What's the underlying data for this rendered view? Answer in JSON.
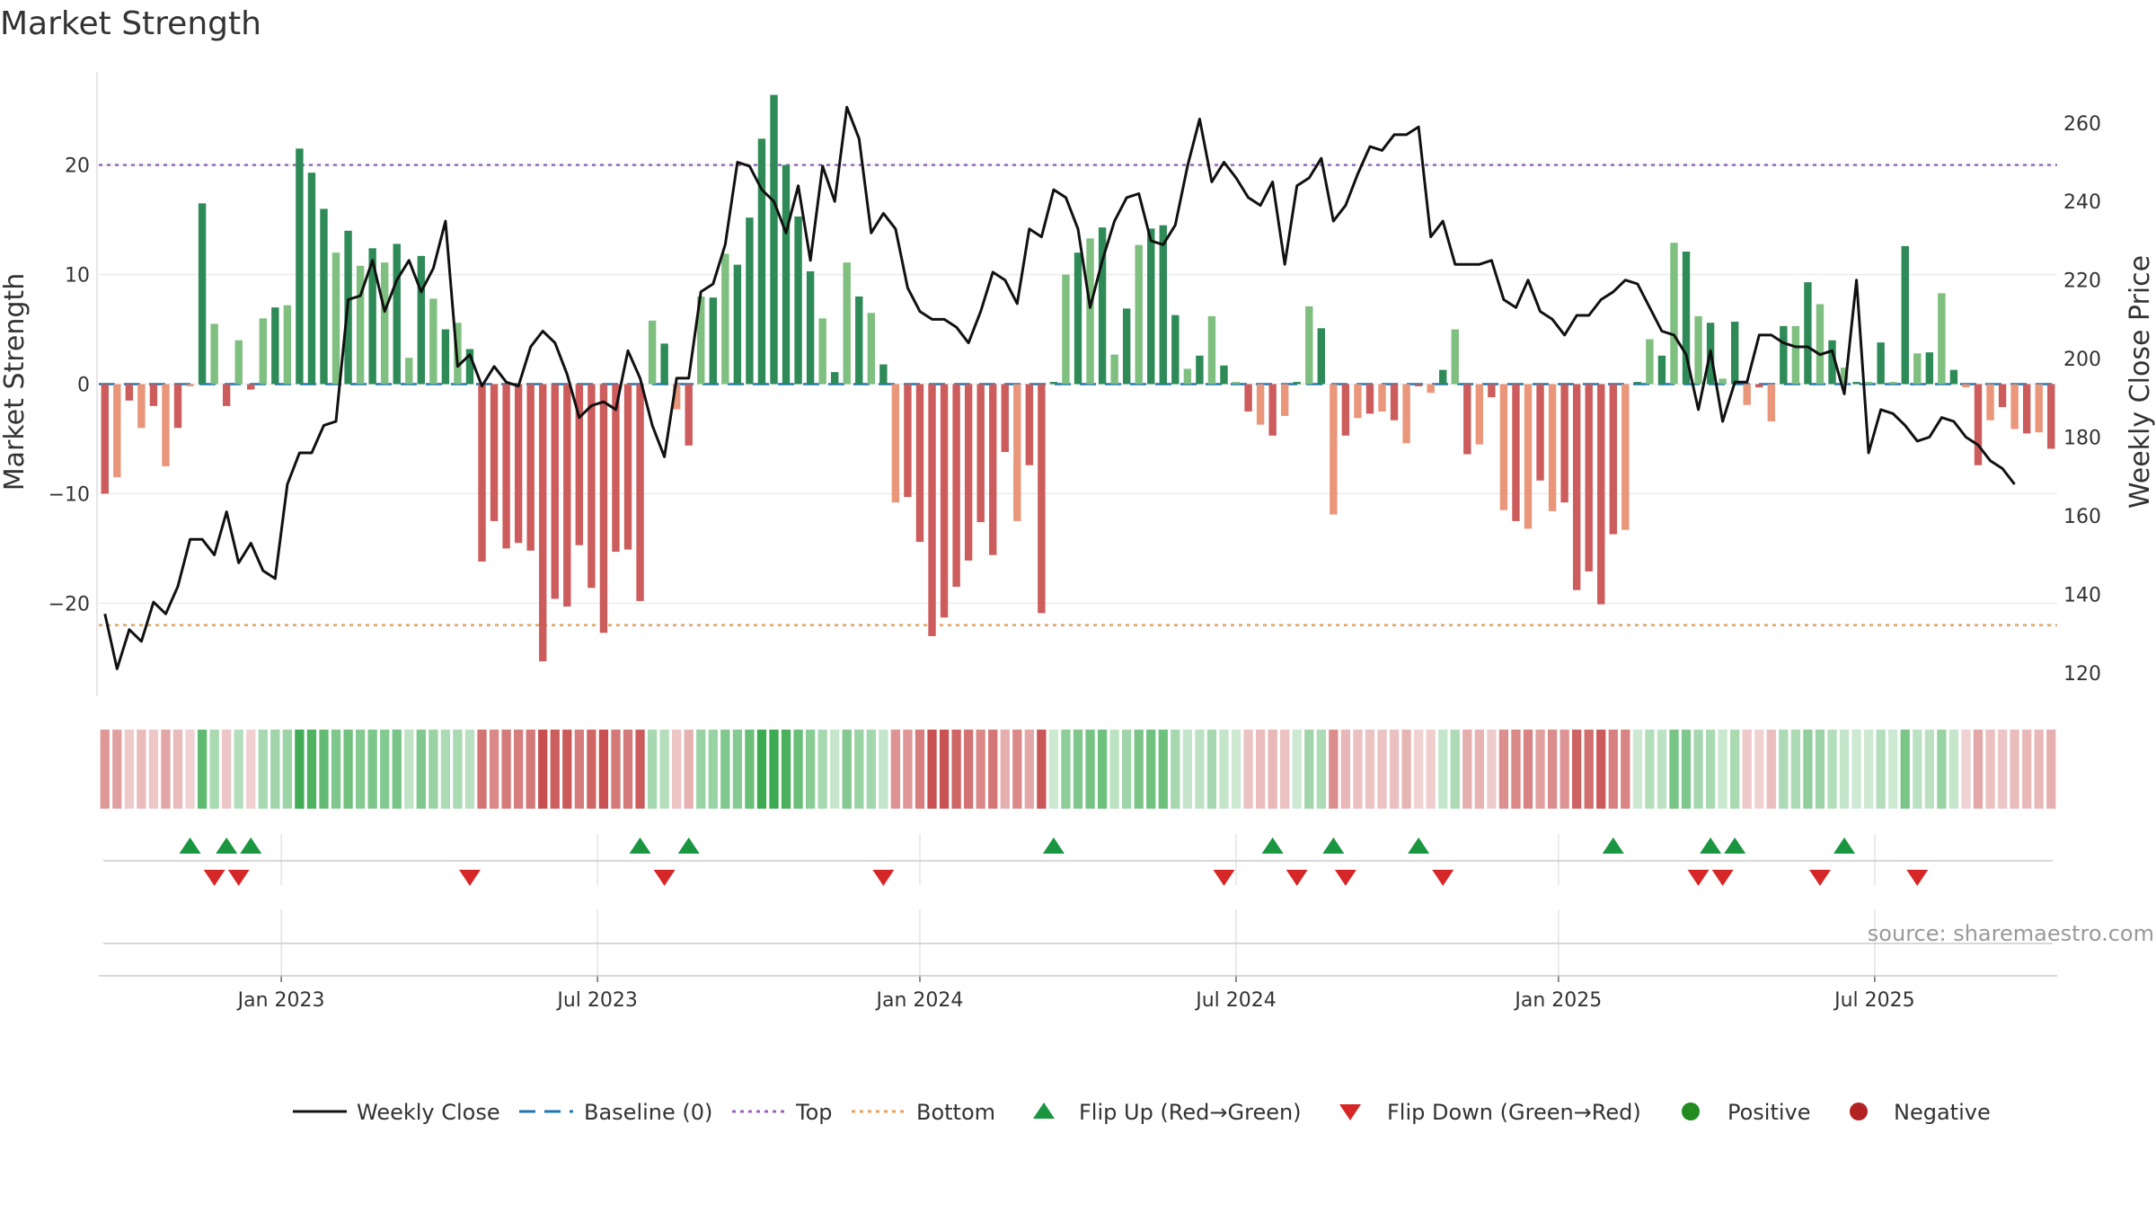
{
  "chart_data": {
    "type": "bar",
    "title": "Market Strength",
    "ylabel_left": "Market Strength",
    "ylabel_right": "Weekly Close Price",
    "source": "source: sharemaestro.com",
    "ylim_left": [
      -28.5,
      28.5
    ],
    "ylim_right": [
      114,
      273
    ],
    "yticks_left": [
      -20,
      -10,
      0,
      10,
      20
    ],
    "yticks_left_labels": [
      "−20",
      "−10",
      "0",
      "10",
      "20"
    ],
    "yticks_right": [
      120,
      140,
      160,
      180,
      200,
      220,
      240,
      260
    ],
    "yticks_right_labels": [
      "120",
      "140",
      "160",
      "180",
      "200",
      "220",
      "240",
      "260"
    ],
    "top_level": 20,
    "bottom_level": -22,
    "baseline": 0,
    "x_tick_labels": [
      "Jan 2023",
      "Jul 2023",
      "Jan 2024",
      "Jul 2024",
      "Jan 2025",
      "Jul 2025"
    ],
    "x_tick_weeks": [
      15,
      41,
      67.5,
      93.5,
      120,
      146
    ],
    "strength": [
      -10,
      -8.5,
      -1.5,
      -4,
      -2,
      -7.5,
      -4,
      -0.2,
      16.5,
      5.5,
      -2,
      4,
      -0.5,
      6,
      7,
      7.2,
      21.5,
      19.3,
      16,
      12,
      14,
      10.8,
      12.4,
      11.1,
      12.8,
      2.4,
      11.7,
      7.8,
      5,
      5.6,
      3.2,
      -16.2,
      -12.5,
      -15,
      -14.5,
      -15.2,
      -25.3,
      -19.6,
      -20.3,
      -14.7,
      -18.6,
      -22.7,
      -15.3,
      -15.1,
      -19.8,
      5.8,
      3.7,
      -2.3,
      -5.6,
      8,
      7.9,
      11.9,
      10.9,
      15.2,
      22.4,
      26.4,
      20,
      15.3,
      10.3,
      6,
      1.1,
      11.1,
      8,
      6.5,
      1.8,
      -10.8,
      -10.3,
      -14.4,
      -23,
      -21.3,
      -18.5,
      -16.1,
      -12.6,
      -15.6,
      -6.2,
      -12.5,
      -7.4,
      -20.9,
      0.2,
      10,
      12,
      13.3,
      14.3,
      2.7,
      6.9,
      12.7,
      14.2,
      14.5,
      6.3,
      1.4,
      2.6,
      6.2,
      1.7,
      0.2,
      -2.5,
      -3.7,
      -4.7,
      -2.9,
      0.2,
      7.1,
      5.1,
      -11.9,
      -4.7,
      -3.1,
      -2.7,
      -2.5,
      -3.3,
      -5.4,
      -0.2,
      -0.8,
      1.3,
      5,
      -6.4,
      -5.5,
      -1.2,
      -11.5,
      -12.5,
      -13.2,
      -8.8,
      -11.6,
      -10.8,
      -18.8,
      -17.1,
      -20.1,
      -13.7,
      -13.3,
      0.2,
      4.1,
      2.6,
      12.9,
      12.1,
      6.2,
      5.6,
      0.5,
      5.7,
      -1.9,
      -0.3,
      -3.4,
      5.3,
      5.3,
      9.3,
      7.3,
      4,
      1.5,
      0.2,
      0.2,
      3.8,
      0.2,
      12.6,
      2.8,
      2.9,
      8.3,
      1.3,
      -0.3,
      -7.4,
      -3.3,
      -2.1,
      -4.1,
      -4.5,
      -4.4,
      -5.9
    ],
    "close": [
      135,
      121,
      131,
      128,
      138,
      135,
      142,
      154,
      154,
      150,
      161,
      148,
      153,
      146,
      144,
      168,
      176,
      176,
      183,
      184,
      215,
      216,
      225,
      212,
      220,
      225,
      217,
      223,
      235,
      198,
      201,
      193,
      198,
      194,
      193,
      203,
      207,
      204,
      196,
      185,
      188,
      189,
      187,
      202,
      195,
      183,
      175,
      195,
      195,
      217,
      219,
      229,
      250,
      249,
      243,
      240,
      232,
      244,
      225,
      249,
      240,
      264,
      256,
      232,
      237,
      233,
      218,
      212,
      210,
      210,
      208,
      204,
      212,
      222,
      220,
      214,
      233,
      231,
      243,
      241,
      233,
      213,
      225,
      235,
      241,
      242,
      230,
      229,
      234,
      249,
      261,
      245,
      250,
      246,
      241,
      239,
      245,
      224,
      244,
      246,
      251,
      235,
      239,
      247,
      254,
      253,
      257,
      257,
      259,
      231,
      235,
      224,
      224,
      224,
      225,
      215,
      213,
      220,
      212,
      210,
      206,
      211,
      211,
      215,
      217,
      220,
      219,
      213,
      207,
      206,
      201,
      187,
      202,
      184,
      194,
      194,
      206,
      206,
      204,
      203,
      203,
      201,
      202,
      191,
      220,
      176,
      187,
      186,
      183,
      179,
      180,
      185,
      184,
      180,
      178,
      174,
      172,
      168
    ],
    "flip_up_weeks": [
      7,
      10,
      12,
      44,
      48,
      78,
      96,
      101,
      108,
      124,
      132,
      134,
      143
    ],
    "flip_down_weeks": [
      9,
      11,
      30,
      46,
      64,
      92,
      98,
      102,
      110,
      131,
      133,
      141,
      149
    ],
    "series_names": [
      "Market Strength",
      "Weekly Close"
    ],
    "legend": [
      "Weekly Close",
      "Baseline (0)",
      "Top",
      "Bottom",
      "Flip Up (Red→Green)",
      "Flip Down (Green→Red)",
      "Positive",
      "Negative"
    ],
    "colors": {
      "pos_strong": "#2e8b57",
      "pos_weak": "#7fbf7f",
      "neg_strong": "#cd5c5c",
      "neg_weak": "#e9967a",
      "top_line": "#9467bd",
      "bottom_line": "#e5a25c",
      "baseline": "#1f77b4",
      "close_line": "#111111",
      "flip_up": "#1a9641",
      "flip_down": "#d62728",
      "positive_dot": "#228b22",
      "negative_dot": "#b22222"
    }
  }
}
